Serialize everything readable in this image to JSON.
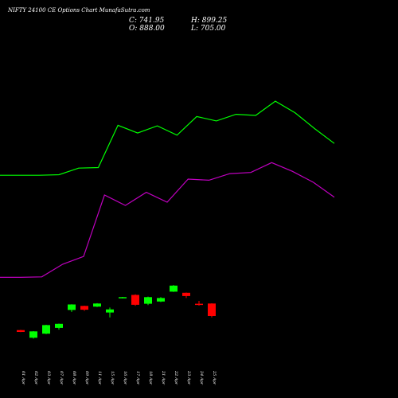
{
  "chart_data": {
    "type": "candlestick",
    "title": "NIFTY 24100  CE Options  Chart MunafaSutra.com",
    "ohlc_readout": {
      "close": "C: 741.95",
      "open": "O: 888.00",
      "high": "H: 899.25",
      "low": "L: 705.00"
    },
    "categories": [
      "01 Apr",
      "02 Apr",
      "03 Apr",
      "07 Apr",
      "08 Apr",
      "09 Apr",
      "11 Apr",
      "15 Apr",
      "16 Apr",
      "17 Apr",
      "18 Apr",
      "21 Apr",
      "22 Apr",
      "23 Apr",
      "24 Apr",
      "25 Apr"
    ],
    "candles": [
      {
        "label": "01 Apr",
        "open": -30,
        "close": -47,
        "high": -28,
        "low": -49,
        "color": "#ff0000"
      },
      {
        "label": "02 Apr",
        "open": -100,
        "close": -42,
        "high": -40,
        "low": -108,
        "color": "#00ff00"
      },
      {
        "label": "03 Apr",
        "open": -63,
        "close": 15,
        "high": 18,
        "low": -67,
        "color": "#00ff00"
      },
      {
        "label": "07 Apr",
        "open": -10,
        "close": 27,
        "high": 29,
        "low": -26,
        "color": "#00ff00"
      },
      {
        "label": "08 Apr",
        "open": 153,
        "close": 203,
        "high": 205,
        "low": 135,
        "color": "#00ff00"
      },
      {
        "label": "09 Apr",
        "open": 190,
        "close": 155,
        "high": 192,
        "low": 145,
        "color": "#ff0000"
      },
      {
        "label": "11 Apr",
        "open": 184,
        "close": 212,
        "high": 215,
        "low": 180,
        "color": "#00ff00"
      },
      {
        "label": "15 Apr",
        "open": 130,
        "close": 158,
        "high": 175,
        "low": 85,
        "color": "#00ff00"
      },
      {
        "label": "16 Apr",
        "open": 260,
        "close": 270,
        "high": 272,
        "low": 258,
        "color": "#00ff00"
      },
      {
        "label": "17 Apr",
        "open": 290,
        "close": 200,
        "high": 295,
        "low": 190,
        "color": "#ff0000"
      },
      {
        "label": "18 Apr",
        "open": 210,
        "close": 270,
        "high": 275,
        "low": 198,
        "color": "#00ff00"
      },
      {
        "label": "21 Apr",
        "open": 230,
        "close": 262,
        "high": 270,
        "low": 225,
        "color": "#00ff00"
      },
      {
        "label": "22 Apr",
        "open": 320,
        "close": 375,
        "high": 380,
        "low": 318,
        "color": "#00ff00"
      },
      {
        "label": "23 Apr",
        "open": 310,
        "close": 280,
        "high": 312,
        "low": 262,
        "color": "#ff0000"
      },
      {
        "label": "24 Apr",
        "open": 210,
        "close": 200,
        "high": 236,
        "low": 192,
        "color": "#ff0000"
      },
      {
        "label": "25 Apr",
        "open": 212,
        "close": 98,
        "high": 214,
        "low": 86,
        "color": "#ff0000"
      }
    ],
    "overlay_lines": [
      {
        "color": "#00ff00",
        "values": [
          1380,
          1380,
          1380,
          1385,
          1445,
          1450,
          1835,
          1765,
          1830,
          1745,
          1915,
          1875,
          1935,
          1925,
          2055,
          1950,
          1805,
          1670
        ]
      },
      {
        "color": "#c000c0",
        "values": [
          450,
          450,
          455,
          570,
          640,
          1200,
          1105,
          1225,
          1135,
          1345,
          1335,
          1395,
          1405,
          1495,
          1415,
          1315,
          1180
        ]
      }
    ],
    "ylim": [
      -250,
      2650
    ],
    "grid": false,
    "legend": "none"
  }
}
